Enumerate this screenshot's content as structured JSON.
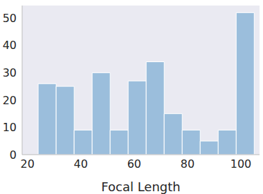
{
  "chart_data": {
    "type": "histogram",
    "xlabel": "Focal Length",
    "bins": [
      24,
      30.75,
      37.5,
      44.25,
      51,
      57.75,
      64.5,
      71.25,
      78,
      84.75,
      91.5,
      98.25,
      105
    ],
    "values": [
      26,
      25,
      9,
      30,
      9,
      27,
      34,
      15,
      9,
      5,
      9,
      52
    ],
    "color": "#9bbedc",
    "xlim": [
      18,
      107
    ],
    "xticks": [
      20,
      40,
      60,
      80,
      100
    ],
    "ylim": [
      0,
      54.6
    ],
    "yticks": [
      0,
      10,
      20,
      30,
      40,
      50
    ],
    "grid": false
  }
}
